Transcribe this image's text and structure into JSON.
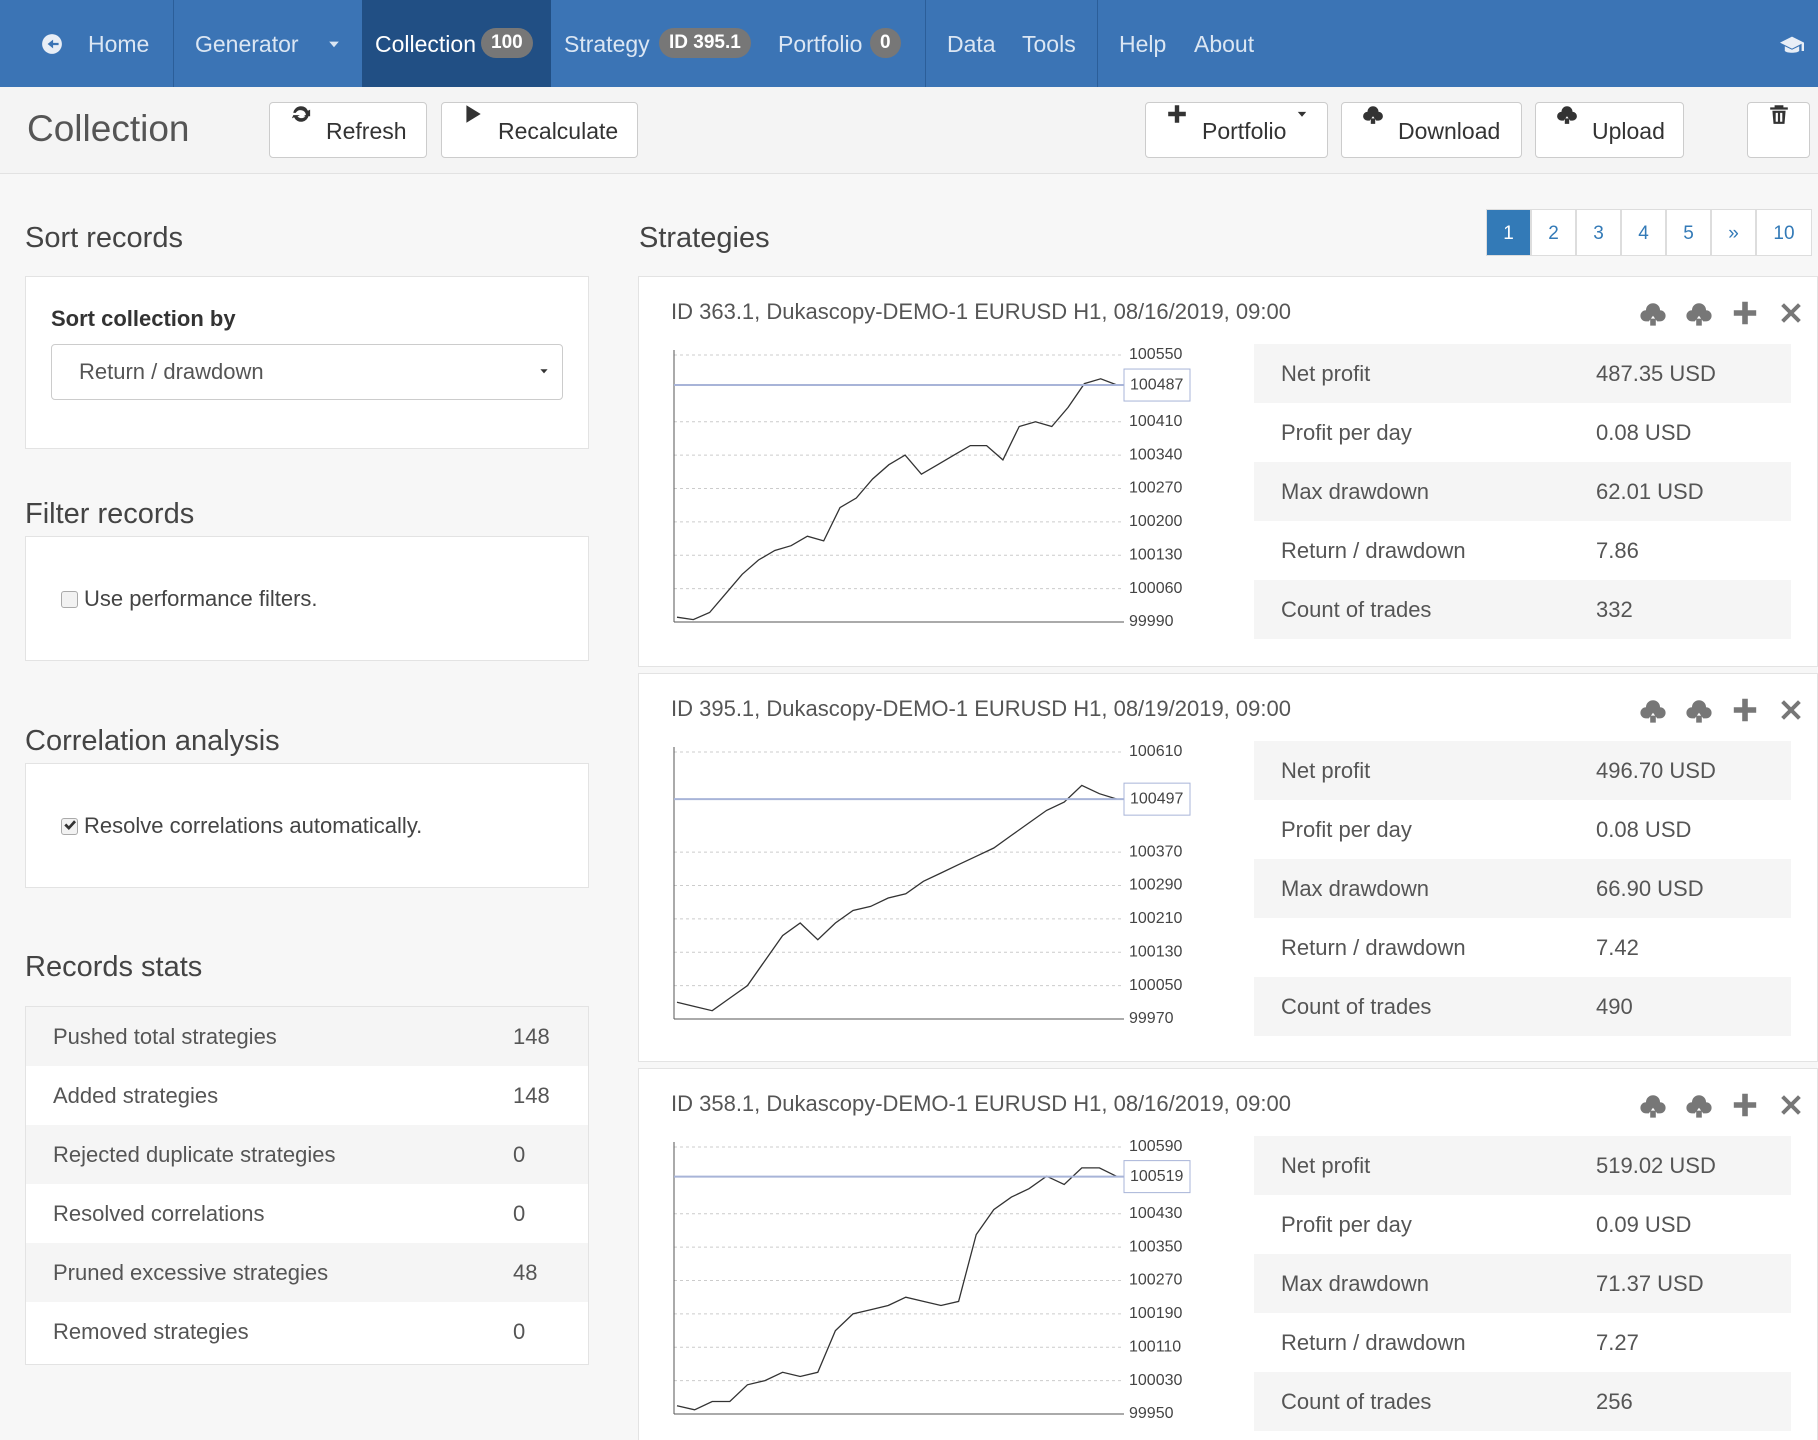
{
  "nav": {
    "items": [
      {
        "label": "Home"
      },
      {
        "label": "Generator"
      },
      {
        "label": "Collection",
        "badge": 100
      },
      {
        "label": "Strategy",
        "badge": "ID 395.1"
      },
      {
        "label": "Portfolio",
        "badge": 0
      },
      {
        "label": "Data"
      },
      {
        "label": "Tools"
      },
      {
        "label": "Help"
      },
      {
        "label": "About"
      }
    ]
  },
  "toolbar": {
    "title": "Collection",
    "buttons": [
      "Refresh",
      "Recalculate",
      "Portfolio",
      "Download",
      "Upload"
    ]
  },
  "sidebar": {
    "sort": {
      "heading": "Sort records",
      "label": "Sort collection by",
      "selected": "Return / drawdown"
    },
    "filter": {
      "heading": "Filter records",
      "option": "Use performance filters.",
      "checked": false
    },
    "correlation": {
      "heading": "Correlation analysis",
      "option": "Resolve correlations automatically.",
      "checked": true
    },
    "stats": {
      "heading": "Records stats",
      "rows": [
        [
          "Pushed total strategies",
          148
        ],
        [
          "Added strategies",
          148
        ],
        [
          "Rejected duplicate strategies",
          0
        ],
        [
          "Resolved correlations",
          0
        ],
        [
          "Pruned excessive strategies",
          48
        ],
        [
          "Removed strategies",
          0
        ]
      ]
    }
  },
  "strategies": {
    "heading": "Strategies",
    "pages": [
      1,
      2,
      3,
      4,
      5,
      "»",
      10
    ],
    "current_page": 1,
    "items": [
      {
        "title": "ID 363.1, Dukascopy-DEMO-1 EURUSD H1, 08/16/2019, 09:00",
        "chart": {
          "ylim": [
            99990,
            100550
          ],
          "yticks": [
            99990,
            100060,
            100130,
            100200,
            100270,
            100340,
            100410,
            100550
          ],
          "current": 100487,
          "values": [
            100000,
            99995,
            100010,
            100050,
            100090,
            100120,
            100140,
            100150,
            100170,
            100160,
            100230,
            100250,
            100290,
            100320,
            100340,
            100300,
            100320,
            100340,
            100360,
            100360,
            100330,
            100400,
            100410,
            100400,
            100440,
            100490,
            100500,
            100487
          ]
        },
        "stats": [
          [
            "Net profit",
            "487.35 USD"
          ],
          [
            "Profit per day",
            "0.08 USD"
          ],
          [
            "Max drawdown",
            "62.01 USD"
          ],
          [
            "Return / drawdown",
            7.86
          ],
          [
            "Count of trades",
            332
          ]
        ]
      },
      {
        "title": "ID 395.1, Dukascopy-DEMO-1 EURUSD H1, 08/19/2019, 09:00",
        "chart": {
          "ylim": [
            99970,
            100610
          ],
          "yticks": [
            99970,
            100050,
            100130,
            100210,
            100290,
            100370,
            100610
          ],
          "current": 100497,
          "values": [
            100010,
            100000,
            99990,
            100020,
            100050,
            100110,
            100170,
            100200,
            100160,
            100200,
            100230,
            100240,
            100260,
            100270,
            100300,
            100320,
            100340,
            100360,
            100380,
            100410,
            100440,
            100470,
            100490,
            100530,
            100510,
            100497
          ]
        },
        "stats": [
          [
            "Net profit",
            "496.70 USD"
          ],
          [
            "Profit per day",
            "0.08 USD"
          ],
          [
            "Max drawdown",
            "66.90 USD"
          ],
          [
            "Return / drawdown",
            7.42
          ],
          [
            "Count of trades",
            490
          ]
        ]
      },
      {
        "title": "ID 358.1, Dukascopy-DEMO-1 EURUSD H1, 08/16/2019, 09:00",
        "chart": {
          "ylim": [
            99950,
            100590
          ],
          "yticks": [
            99950,
            100030,
            100110,
            100190,
            100270,
            100350,
            100430,
            100590
          ],
          "current": 100519,
          "values": [
            99970,
            99960,
            99980,
            99980,
            100020,
            100030,
            100050,
            100040,
            100050,
            100150,
            100190,
            100200,
            100210,
            100230,
            100220,
            100210,
            100220,
            100380,
            100440,
            100470,
            100490,
            100520,
            100500,
            100540,
            100540,
            100519
          ]
        },
        "stats": [
          [
            "Net profit",
            "519.02 USD"
          ],
          [
            "Profit per day",
            "0.09 USD"
          ],
          [
            "Max drawdown",
            "71.37 USD"
          ],
          [
            "Return / drawdown",
            7.27
          ],
          [
            "Count of trades",
            256
          ]
        ]
      }
    ]
  }
}
